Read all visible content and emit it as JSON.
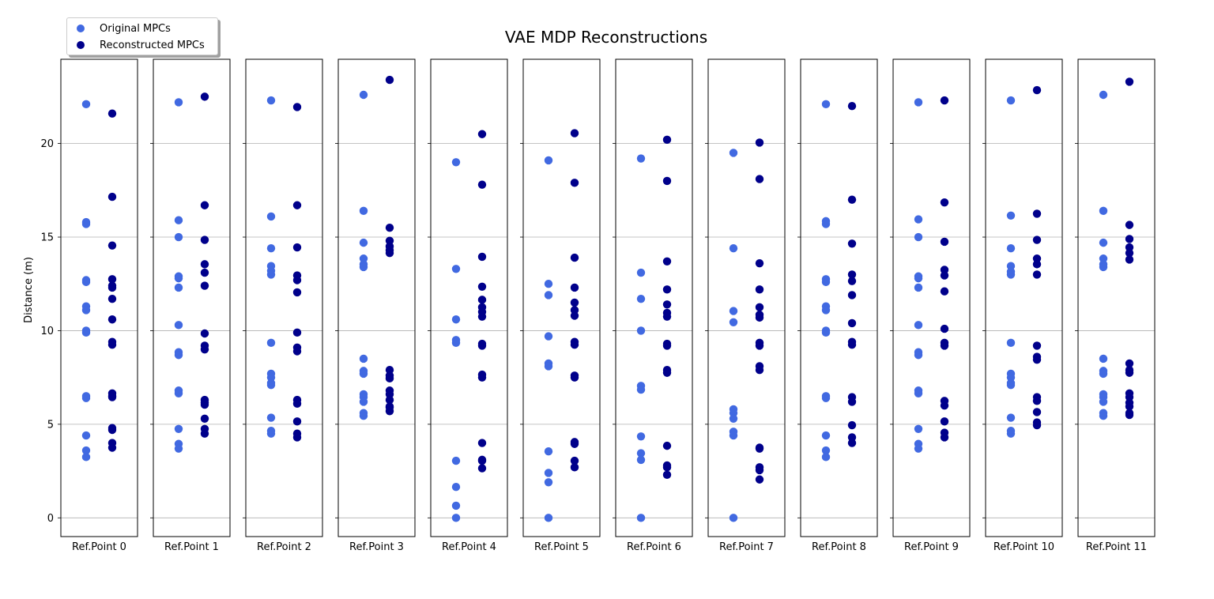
{
  "chart_data": {
    "type": "scatter",
    "title": "VAE MDP Reconstructions",
    "ylabel": "Distance (m)",
    "ylim": [
      -1,
      24.5
    ],
    "yticks": [
      0,
      5,
      10,
      15,
      20
    ],
    "grid": "y",
    "legend_position": "upper-left",
    "categories": [
      "Ref.Point 0",
      "Ref.Point 1",
      "Ref.Point 2",
      "Ref.Point 3",
      "Ref.Point 4",
      "Ref.Point 5",
      "Ref.Point 6",
      "Ref.Point 7",
      "Ref.Point 8",
      "Ref.Point 9",
      "Ref.Point 10",
      "Ref.Point 11"
    ],
    "series": [
      {
        "name": "Original MPCs",
        "color": "#4169E1",
        "values": [
          [
            22.1,
            15.8,
            15.7,
            12.7,
            12.6,
            11.3,
            11.1,
            10.0,
            9.9,
            6.5,
            6.4,
            4.4,
            3.6,
            3.25
          ],
          [
            22.2,
            15.9,
            15.0,
            12.9,
            12.8,
            12.3,
            10.3,
            8.85,
            8.7,
            6.8,
            6.65,
            4.75,
            3.95,
            3.7
          ],
          [
            22.3,
            16.1,
            14.4,
            13.45,
            13.2,
            13.0,
            9.35,
            7.7,
            7.5,
            7.2,
            7.1,
            5.35,
            4.65,
            4.5
          ],
          [
            22.6,
            16.4,
            14.7,
            13.85,
            13.55,
            13.4,
            8.5,
            7.85,
            7.7,
            6.6,
            6.45,
            6.2,
            5.6,
            5.45
          ],
          [
            19.0,
            13.3,
            10.6,
            9.5,
            9.35,
            3.05,
            1.65,
            0.65,
            0.0
          ],
          [
            19.1,
            12.5,
            11.9,
            9.7,
            8.25,
            8.1,
            3.55,
            2.4,
            1.9,
            0.0
          ],
          [
            19.2,
            13.1,
            11.7,
            10.0,
            7.05,
            6.85,
            4.35,
            3.45,
            3.1,
            0.0
          ],
          [
            19.5,
            14.4,
            11.05,
            10.45,
            5.8,
            5.6,
            5.3,
            4.6,
            4.4,
            0.0
          ],
          [
            22.1,
            15.85,
            15.7,
            12.75,
            12.6,
            11.3,
            11.1,
            10.0,
            9.9,
            6.5,
            6.4,
            4.4,
            3.6,
            3.25
          ],
          [
            22.2,
            15.95,
            15.0,
            12.9,
            12.8,
            12.3,
            10.3,
            8.85,
            8.7,
            6.8,
            6.65,
            4.75,
            3.95,
            3.7
          ],
          [
            22.3,
            16.15,
            14.4,
            13.45,
            13.15,
            13.0,
            9.35,
            7.7,
            7.5,
            7.2,
            7.1,
            5.35,
            4.65,
            4.5
          ],
          [
            22.6,
            16.4,
            14.7,
            13.85,
            13.55,
            13.4,
            8.5,
            7.85,
            7.7,
            6.6,
            6.45,
            6.2,
            5.6,
            5.45
          ]
        ]
      },
      {
        "name": "Reconstructed MPCs",
        "color": "#00008B",
        "values": [
          [
            21.6,
            17.15,
            14.55,
            12.75,
            12.4,
            12.3,
            11.7,
            10.6,
            9.4,
            9.25,
            6.65,
            6.5,
            6.45,
            4.8,
            4.7,
            4.0,
            3.75
          ],
          [
            22.5,
            16.7,
            14.85,
            13.55,
            13.1,
            12.4,
            9.85,
            9.2,
            9.0,
            6.3,
            6.15,
            6.05,
            5.3,
            4.75,
            4.5
          ],
          [
            21.95,
            16.7,
            14.45,
            12.95,
            12.7,
            12.05,
            9.9,
            9.1,
            8.9,
            6.3,
            6.1,
            5.15,
            4.5,
            4.3
          ],
          [
            23.4,
            15.5,
            14.8,
            14.5,
            14.3,
            14.15,
            7.9,
            7.6,
            7.45,
            6.8,
            6.6,
            6.3,
            5.95,
            5.9,
            5.7
          ],
          [
            20.5,
            17.8,
            13.95,
            12.35,
            11.65,
            11.25,
            11.0,
            10.75,
            9.3,
            9.2,
            7.65,
            7.5,
            4.0,
            3.1,
            3.05,
            2.65
          ],
          [
            20.55,
            17.9,
            13.9,
            12.3,
            11.5,
            11.1,
            10.8,
            9.4,
            9.25,
            7.6,
            7.5,
            4.05,
            3.95,
            3.05,
            2.7
          ],
          [
            20.2,
            18.0,
            13.7,
            12.2,
            11.4,
            10.95,
            10.75,
            9.3,
            9.2,
            7.9,
            7.75,
            3.85,
            2.8,
            2.7,
            2.3
          ],
          [
            20.05,
            18.1,
            13.6,
            12.2,
            11.25,
            10.85,
            10.7,
            9.35,
            9.2,
            8.1,
            7.9,
            3.75,
            3.7,
            2.7,
            2.55,
            2.05
          ],
          [
            22.0,
            17.0,
            14.65,
            13.0,
            12.65,
            11.9,
            10.4,
            9.4,
            9.25,
            6.45,
            6.2,
            4.95,
            4.3,
            4.0
          ],
          [
            22.3,
            16.85,
            14.75,
            13.25,
            12.95,
            12.1,
            10.1,
            9.35,
            9.2,
            6.25,
            6.0,
            5.15,
            4.55,
            4.3
          ],
          [
            22.85,
            16.25,
            14.85,
            13.85,
            13.55,
            13.0,
            9.2,
            8.6,
            8.45,
            6.45,
            6.25,
            5.65,
            5.1,
            4.95
          ],
          [
            23.3,
            15.65,
            14.9,
            14.45,
            14.15,
            13.8,
            8.25,
            7.9,
            7.75,
            6.65,
            6.45,
            6.15,
            5.95,
            5.6,
            5.5
          ]
        ]
      }
    ]
  }
}
